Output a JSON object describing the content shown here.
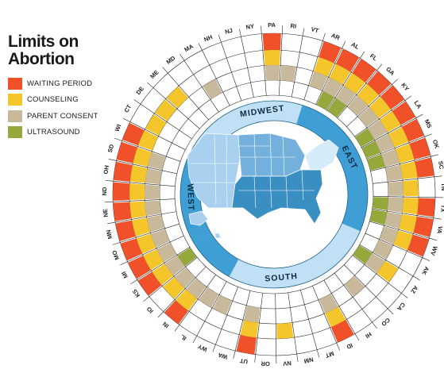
{
  "legend": {
    "title_line1": "Limits on",
    "title_line2": "Abortion",
    "items": [
      {
        "label": "WAITING PERIOD",
        "color": "#f0502a"
      },
      {
        "label": "COUNSELING",
        "color": "#f5c62c"
      },
      {
        "label": "PARENT CONSENT",
        "color": "#c7b99a"
      },
      {
        "label": "ULTRASOUND",
        "color": "#95a83c"
      }
    ]
  },
  "regions": {
    "midwest": "MIDWEST",
    "east": "EAST",
    "south": "SOUTH",
    "west": "WEST"
  },
  "colors": {
    "ring_dark": "#3f9fd4",
    "ring_light": "#bfe0f5",
    "map_dark": "#3a8fc2",
    "map_mid": "#74b0dc",
    "map_light": "#a9d0ee",
    "map_pale": "#d6ebfa"
  },
  "states": [
    {
      "abbr": "MI",
      "wait": true,
      "counsel": true,
      "consent": true,
      "ultra": false
    },
    {
      "abbr": "MO",
      "wait": true,
      "counsel": true,
      "consent": true,
      "ultra": false
    },
    {
      "abbr": "MN",
      "wait": true,
      "counsel": true,
      "consent": true,
      "ultra": false
    },
    {
      "abbr": "NE",
      "wait": true,
      "counsel": true,
      "consent": true,
      "ultra": false
    },
    {
      "abbr": "ND",
      "wait": true,
      "counsel": true,
      "consent": true,
      "ultra": false
    },
    {
      "abbr": "OH",
      "wait": true,
      "counsel": true,
      "consent": true,
      "ultra": false
    },
    {
      "abbr": "SD",
      "wait": true,
      "counsel": true,
      "consent": true,
      "ultra": false
    },
    {
      "abbr": "WI",
      "wait": true,
      "counsel": true,
      "consent": false,
      "ultra": false
    },
    {
      "abbr": "CT",
      "wait": false,
      "counsel": true,
      "consent": false,
      "ultra": false
    },
    {
      "abbr": "DE",
      "wait": false,
      "counsel": true,
      "consent": false,
      "ultra": false
    },
    {
      "abbr": "ME",
      "wait": false,
      "counsel": true,
      "consent": false,
      "ultra": false
    },
    {
      "abbr": "MD",
      "wait": false,
      "counsel": false,
      "consent": false,
      "ultra": false
    },
    {
      "abbr": "MA",
      "wait": false,
      "counsel": false,
      "consent": true,
      "ultra": false
    },
    {
      "abbr": "NH",
      "wait": false,
      "counsel": false,
      "consent": false,
      "ultra": false
    },
    {
      "abbr": "NJ",
      "wait": false,
      "counsel": false,
      "consent": false,
      "ultra": false
    },
    {
      "abbr": "NY",
      "wait": false,
      "counsel": false,
      "consent": false,
      "ultra": false
    },
    {
      "abbr": "PA",
      "wait": true,
      "counsel": true,
      "consent": true,
      "ultra": false
    },
    {
      "abbr": "RI",
      "wait": false,
      "counsel": false,
      "consent": true,
      "ultra": false
    },
    {
      "abbr": "VT",
      "wait": false,
      "counsel": false,
      "consent": false,
      "ultra": false
    },
    {
      "abbr": "AR",
      "wait": true,
      "counsel": true,
      "consent": true,
      "ultra": false
    },
    {
      "abbr": "AL",
      "wait": true,
      "counsel": true,
      "consent": true,
      "ultra": true
    },
    {
      "abbr": "FL",
      "wait": true,
      "counsel": true,
      "consent": true,
      "ultra": true
    },
    {
      "abbr": "GA",
      "wait": true,
      "counsel": true,
      "consent": true,
      "ultra": false
    },
    {
      "abbr": "KY",
      "wait": true,
      "counsel": true,
      "consent": true,
      "ultra": false
    },
    {
      "abbr": "LA",
      "wait": true,
      "counsel": true,
      "consent": true,
      "ultra": true
    },
    {
      "abbr": "MS",
      "wait": true,
      "counsel": true,
      "consent": true,
      "ultra": true
    },
    {
      "abbr": "OK",
      "wait": true,
      "counsel": true,
      "consent": true,
      "ultra": true
    },
    {
      "abbr": "SC",
      "wait": true,
      "counsel": true,
      "consent": true,
      "ultra": false
    },
    {
      "abbr": "TN",
      "wait": false,
      "counsel": true,
      "consent": true,
      "ultra": false
    },
    {
      "abbr": "TX",
      "wait": true,
      "counsel": true,
      "consent": true,
      "ultra": true
    },
    {
      "abbr": "VA",
      "wait": true,
      "counsel": true,
      "consent": true,
      "ultra": true
    },
    {
      "abbr": "WV",
      "wait": true,
      "counsel": true,
      "consent": true,
      "ultra": false
    },
    {
      "abbr": "AK",
      "wait": false,
      "counsel": false,
      "consent": true,
      "ultra": false
    },
    {
      "abbr": "AZ",
      "wait": false,
      "counsel": true,
      "consent": true,
      "ultra": true
    },
    {
      "abbr": "CA",
      "wait": false,
      "counsel": false,
      "consent": false,
      "ultra": false
    },
    {
      "abbr": "CO",
      "wait": false,
      "counsel": false,
      "consent": true,
      "ultra": false
    },
    {
      "abbr": "HI",
      "wait": false,
      "counsel": false,
      "consent": false,
      "ultra": false
    },
    {
      "abbr": "ID",
      "wait": true,
      "counsel": true,
      "consent": true,
      "ultra": false
    },
    {
      "abbr": "MT",
      "wait": false,
      "counsel": false,
      "consent": false,
      "ultra": false
    },
    {
      "abbr": "NM",
      "wait": false,
      "counsel": false,
      "consent": false,
      "ultra": false
    },
    {
      "abbr": "NV",
      "wait": false,
      "counsel": true,
      "consent": false,
      "ultra": false
    },
    {
      "abbr": "OR",
      "wait": false,
      "counsel": false,
      "consent": false,
      "ultra": false
    },
    {
      "abbr": "UT",
      "wait": true,
      "counsel": true,
      "consent": true,
      "ultra": false
    },
    {
      "abbr": "WA",
      "wait": false,
      "counsel": false,
      "consent": false,
      "ultra": false
    },
    {
      "abbr": "WY",
      "wait": false,
      "counsel": false,
      "consent": true,
      "ultra": false
    },
    {
      "abbr": "IL",
      "wait": false,
      "counsel": false,
      "consent": true,
      "ultra": false
    },
    {
      "abbr": "IN",
      "wait": true,
      "counsel": true,
      "consent": true,
      "ultra": false
    },
    {
      "abbr": "IO",
      "wait": false,
      "counsel": true,
      "consent": true,
      "ultra": false
    },
    {
      "abbr": "KS",
      "wait": true,
      "counsel": true,
      "consent": true,
      "ultra": true
    }
  ]
}
